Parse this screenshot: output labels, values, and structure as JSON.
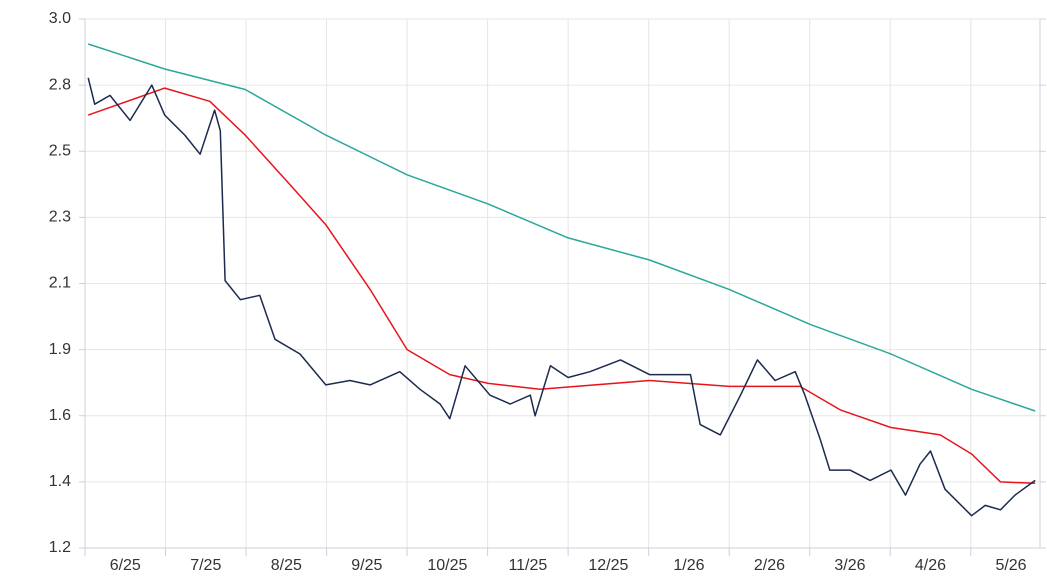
{
  "chart_data": {
    "type": "line",
    "categories": [
      "6/25",
      "7/25",
      "8/25",
      "9/25",
      "10/25",
      "11/25",
      "12/25",
      "1/26",
      "2/26",
      "3/26",
      "4/26",
      "5/26"
    ],
    "xlim": [
      0,
      11.86
    ],
    "xticks": [
      0,
      1,
      2,
      3,
      4,
      5,
      6,
      7,
      8,
      9,
      10,
      11,
      12
    ],
    "ylim": [
      1.2,
      3.0
    ],
    "yticks": [
      {
        "value": 1.2,
        "label": "1.2"
      },
      {
        "value": 1.425,
        "label": "1.4"
      },
      {
        "value": 1.65,
        "label": "1.6"
      },
      {
        "value": 1.875,
        "label": "1.9"
      },
      {
        "value": 2.1,
        "label": "2.1"
      },
      {
        "value": 2.325,
        "label": "2.3"
      },
      {
        "value": 2.55,
        "label": "2.5"
      },
      {
        "value": 2.775,
        "label": "2.8"
      },
      {
        "value": 3.0,
        "label": "3.0"
      }
    ],
    "grid": true,
    "series": [
      {
        "color": "#2aa89a",
        "x": [
          0.04,
          0.99,
          1.99,
          2.99,
          4.0,
          5.01,
          6.0,
          7.01,
          8.0,
          9.01,
          10.01,
          11.01,
          11.8
        ],
        "values": [
          2.915,
          2.83,
          2.76,
          2.605,
          2.47,
          2.37,
          2.255,
          2.18,
          2.08,
          1.96,
          1.86,
          1.74,
          1.666
        ]
      },
      {
        "color": "#e8141c",
        "x": [
          0.04,
          0.99,
          1.55,
          1.99,
          2.55,
          2.99,
          3.54,
          4.0,
          4.53,
          5.01,
          5.65,
          7.01,
          8.0,
          8.88,
          9.38,
          10.01,
          10.62,
          11.01,
          11.37,
          11.8
        ],
        "values": [
          2.673,
          2.765,
          2.72,
          2.605,
          2.435,
          2.3,
          2.08,
          1.875,
          1.79,
          1.76,
          1.74,
          1.77,
          1.75,
          1.75,
          1.67,
          1.61,
          1.585,
          1.52,
          1.425,
          1.42
        ]
      },
      {
        "color": "#1b2a4e",
        "x": [
          0.04,
          0.12,
          0.31,
          0.56,
          0.83,
          0.99,
          1.24,
          1.43,
          1.61,
          1.68,
          1.74,
          1.93,
          2.17,
          2.36,
          2.67,
          2.99,
          3.29,
          3.54,
          3.91,
          4.16,
          4.41,
          4.53,
          4.72,
          5.03,
          5.28,
          5.53,
          5.59,
          5.78,
          6.0,
          6.27,
          6.65,
          7.01,
          7.52,
          7.64,
          7.89,
          8.14,
          8.35,
          8.57,
          8.82,
          8.94,
          9.13,
          9.25,
          9.5,
          9.75,
          10.01,
          10.19,
          10.37,
          10.5,
          10.68,
          11.01,
          11.18,
          11.37,
          11.55,
          11.8
        ],
        "values": [
          2.8,
          2.71,
          2.74,
          2.655,
          2.775,
          2.673,
          2.605,
          2.54,
          2.69,
          2.62,
          2.11,
          2.045,
          2.06,
          1.91,
          1.86,
          1.755,
          1.77,
          1.755,
          1.8,
          1.74,
          1.69,
          1.64,
          1.82,
          1.72,
          1.69,
          1.72,
          1.65,
          1.82,
          1.78,
          1.8,
          1.84,
          1.79,
          1.79,
          1.62,
          1.585,
          1.72,
          1.84,
          1.77,
          1.8,
          1.72,
          1.57,
          1.465,
          1.465,
          1.43,
          1.465,
          1.38,
          1.485,
          1.53,
          1.4,
          1.31,
          1.345,
          1.33,
          1.38,
          1.43
        ]
      }
    ]
  }
}
